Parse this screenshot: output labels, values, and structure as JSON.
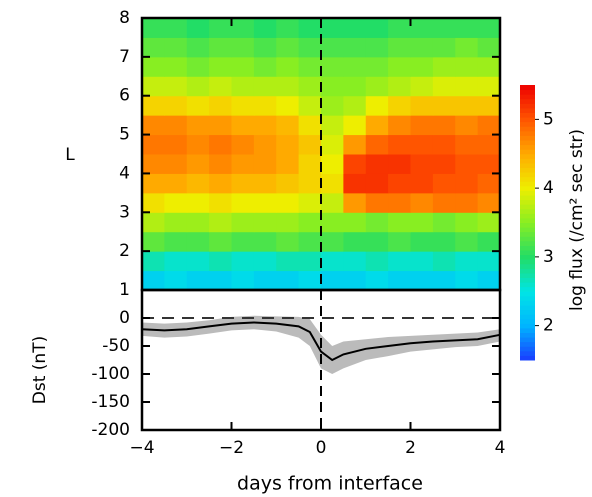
{
  "chart_data": [
    {
      "type": "heatmap",
      "ylabel": "L",
      "xbins": [
        -4,
        -3.5,
        -3,
        -2.5,
        -2,
        -1.5,
        -1,
        -0.5,
        0,
        0.5,
        1,
        1.5,
        2,
        2.5,
        3,
        3.5,
        4
      ],
      "ybins": [
        1,
        1.5,
        2,
        2.5,
        3,
        3.5,
        4,
        4.5,
        5,
        5.5,
        6,
        6.5,
        7,
        7.5,
        8
      ],
      "values": [
        [
          2.3,
          2.4,
          2.3,
          2.3,
          2.4,
          2.3,
          2.3,
          2.4,
          2.3,
          2.3,
          2.4,
          2.3,
          2.3,
          2.3,
          2.4,
          2.3
        ],
        [
          2.7,
          2.6,
          2.6,
          2.7,
          2.6,
          2.6,
          2.7,
          2.7,
          2.6,
          2.6,
          2.7,
          2.6,
          2.6,
          2.7,
          2.6,
          2.6
        ],
        [
          3.3,
          3.2,
          3.2,
          3.3,
          3.2,
          3.2,
          3.3,
          3.2,
          3.2,
          3.1,
          3.1,
          3.2,
          3.1,
          3.1,
          3.2,
          3.1
        ],
        [
          3.7,
          3.6,
          3.6,
          3.7,
          3.6,
          3.6,
          3.6,
          3.5,
          3.5,
          3.5,
          3.4,
          3.5,
          3.5,
          3.4,
          3.5,
          3.6
        ],
        [
          4.1,
          4.0,
          4.0,
          4.1,
          4.0,
          4.0,
          4.0,
          3.9,
          3.8,
          4.6,
          4.8,
          4.8,
          4.7,
          4.8,
          4.8,
          4.7
        ],
        [
          4.5,
          4.5,
          4.4,
          4.5,
          4.4,
          4.4,
          4.3,
          4.2,
          4.1,
          5.2,
          5.2,
          5.1,
          5.1,
          5.0,
          5.0,
          4.9
        ],
        [
          4.7,
          4.7,
          4.6,
          4.7,
          4.6,
          4.6,
          4.5,
          4.2,
          4.0,
          5.1,
          5.2,
          5.2,
          5.1,
          5.1,
          5.0,
          5.0
        ],
        [
          4.8,
          4.8,
          4.7,
          4.8,
          4.7,
          4.6,
          4.5,
          4.3,
          3.9,
          4.6,
          4.9,
          5.0,
          5.0,
          5.0,
          4.9,
          4.9
        ],
        [
          4.7,
          4.7,
          4.6,
          4.6,
          4.5,
          4.5,
          4.4,
          4.1,
          3.8,
          4.0,
          4.5,
          4.7,
          4.8,
          4.8,
          4.7,
          4.8
        ],
        [
          4.2,
          4.2,
          4.1,
          4.2,
          4.1,
          4.1,
          4.0,
          3.8,
          3.6,
          3.7,
          4.0,
          4.2,
          4.3,
          4.3,
          4.3,
          4.3
        ],
        [
          3.8,
          3.8,
          3.7,
          3.8,
          3.7,
          3.7,
          3.7,
          3.6,
          3.5,
          3.5,
          3.6,
          3.7,
          3.8,
          3.9,
          3.9,
          3.9
        ],
        [
          3.5,
          3.5,
          3.4,
          3.5,
          3.5,
          3.4,
          3.5,
          3.4,
          3.4,
          3.4,
          3.4,
          3.5,
          3.5,
          3.6,
          3.6,
          3.6
        ],
        [
          3.3,
          3.3,
          3.2,
          3.3,
          3.3,
          3.2,
          3.3,
          3.2,
          3.2,
          3.2,
          3.2,
          3.3,
          3.3,
          3.3,
          3.4,
          3.3
        ],
        [
          3.1,
          3.1,
          3.0,
          3.1,
          3.1,
          3.0,
          3.1,
          3.0,
          3.0,
          3.0,
          3.0,
          3.1,
          3.1,
          3.1,
          3.1,
          3.1
        ]
      ],
      "xlim": [
        -4,
        4
      ],
      "ylim": [
        1,
        8
      ],
      "yticks": [
        1,
        2,
        3,
        4,
        5,
        6,
        7,
        8
      ],
      "vline": 0,
      "colorbar_label": "log flux (/cm² sec str)",
      "clim": [
        1.5,
        5.5
      ],
      "cticks": [
        2,
        3,
        4,
        5
      ],
      "colorscale": [
        "#1a3cff",
        "#00b4ff",
        "#00e5e5",
        "#22dd66",
        "#88ee22",
        "#eeee00",
        "#ffaa00",
        "#ff5500",
        "#ee0000"
      ]
    },
    {
      "type": "line",
      "ylabel": "Dst (nT)",
      "xlabel": "days from interface",
      "x": [
        -4,
        -3.5,
        -3,
        -2.5,
        -2,
        -1.5,
        -1,
        -0.5,
        -0.25,
        0,
        0.25,
        0.5,
        1,
        1.5,
        2,
        2.5,
        3,
        3.5,
        4
      ],
      "values": [
        -20,
        -22,
        -20,
        -15,
        -10,
        -8,
        -10,
        -15,
        -25,
        -60,
        -75,
        -65,
        -55,
        -50,
        -45,
        -42,
        -40,
        -38,
        -30
      ],
      "band_low": [
        -32,
        -35,
        -33,
        -28,
        -22,
        -20,
        -24,
        -35,
        -50,
        -90,
        -100,
        -90,
        -75,
        -68,
        -60,
        -56,
        -52,
        -50,
        -42
      ],
      "band_high": [
        -8,
        -10,
        -8,
        -4,
        2,
        4,
        3,
        2,
        -2,
        -30,
        -50,
        -42,
        -38,
        -34,
        -32,
        -30,
        -28,
        -26,
        -20
      ],
      "color": "#000000",
      "band_color": "#bbbbbb",
      "xlim": [
        -4,
        4
      ],
      "ylim": [
        -200,
        50
      ],
      "xticks": [
        {
          "value": -4,
          "label": "−4"
        },
        {
          "value": -2,
          "label": "−2"
        },
        0,
        2,
        4
      ],
      "yticks": [
        0,
        -50,
        -100,
        -150,
        -200
      ],
      "vline": 0,
      "hline": 0
    }
  ]
}
